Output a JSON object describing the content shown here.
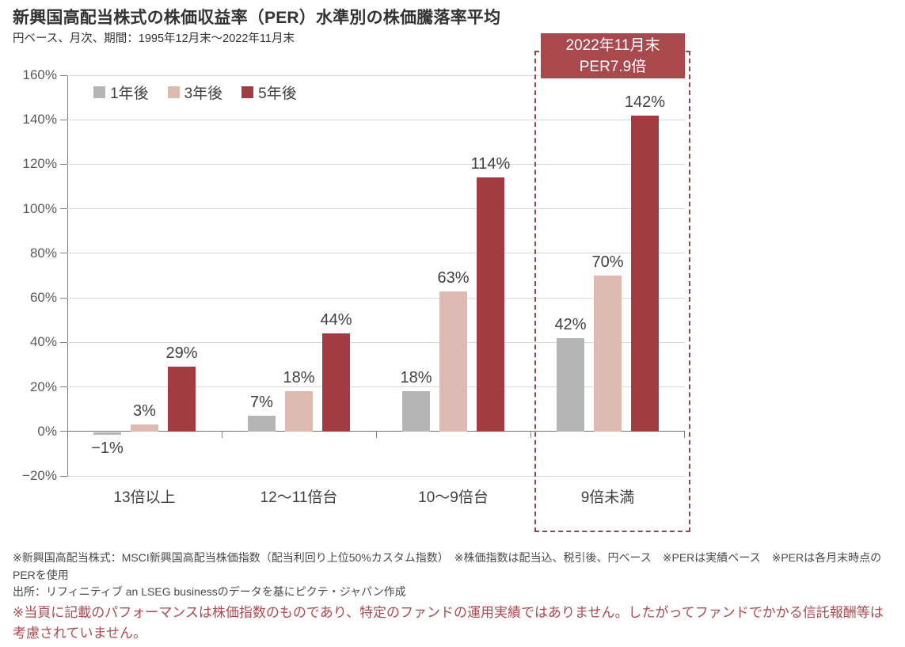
{
  "title": "新興国高配当株式の株価収益率（PER）水準別の株価騰落率平均",
  "subtitle": "円ベース、月次、期間：1995年12月末～2022年11月末",
  "annotation": {
    "line1": "2022年11月末",
    "line2": "PER7.9倍",
    "background_color": "#a9494e",
    "highlight_border_color": "#94464a"
  },
  "chart_data": {
    "type": "bar",
    "categories": [
      "13倍以上",
      "12～11倍台",
      "10～9倍台",
      "9倍未満"
    ],
    "series": [
      {
        "name": "1年後",
        "color": "#b5b5b5",
        "values": [
          -1,
          7,
          18,
          42
        ]
      },
      {
        "name": "3年後",
        "color": "#ddbab1",
        "values": [
          3,
          18,
          63,
          70
        ]
      },
      {
        "name": "5年後",
        "color": "#a23c42",
        "values": [
          29,
          44,
          114,
          142
        ]
      }
    ],
    "ylim": [
      -20,
      160
    ],
    "ytick_step": 20,
    "ytick_format": "percent",
    "grid": true,
    "legend_position": "top-left-inside",
    "highlighted_category": "9倍未満"
  },
  "footnotes": {
    "definition": "※新興国高配当株式：MSCI新興国高配当株価指数（配当利回り上位50%カスタム指数）　※株価指数は配当込、税引後、円ベース　※PERは実績ベース　※PERは各月末時点のPERを使用",
    "source": "出所：リフィニティブ an LSEG businessのデータを基にピクテ・ジャパン作成",
    "risk_note": "※当頁に記載のパフォーマンスは株価指数のものであり、特定のファンドの運用実績ではありません。したがってファンドでかかる信託報酬等は考慮されていません。",
    "risk_note_color": "#aa4b50"
  }
}
